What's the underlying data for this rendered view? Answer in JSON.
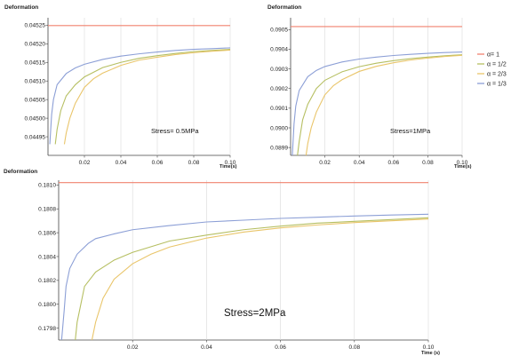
{
  "legend": {
    "entries": [
      {
        "label": "α= 1",
        "color": "#f0826f"
      },
      {
        "label": "α = 1/2",
        "color": "#b6bf62"
      },
      {
        "label": "α = 2/3",
        "color": "#e9c56a"
      },
      {
        "label": "α = 1/3",
        "color": "#8c9fd6"
      }
    ]
  },
  "chart_data": [
    {
      "type": "line",
      "ylabel": "Deformation",
      "xlabel": "Time(s)",
      "annotation": "Stress= 0.5MPa",
      "xlim": [
        0,
        0.1
      ],
      "ylim": [
        0.0449,
        0.04527
      ],
      "grid": true,
      "xticks": [
        0.02,
        0.04,
        0.06,
        0.08,
        0.1
      ],
      "xtick_labels": [
        "0.02",
        "0.04",
        "0.06",
        "0.08",
        "0.10"
      ],
      "yticks": [
        0.04495,
        0.045,
        0.04505,
        0.0451,
        0.04515,
        0.0452,
        0.04525
      ],
      "ytick_labels": [
        "0.04495",
        "0.04500",
        "0.04505",
        "0.04510",
        "0.04515",
        "0.04520",
        "0.04525"
      ],
      "series": [
        {
          "name": "α= 1",
          "color": "#f0826f",
          "x": [
            0,
            0.1
          ],
          "y": [
            0.045249,
            0.045249
          ]
        },
        {
          "name": "α = 1/3",
          "color": "#8c9fd6",
          "x": [
            0.001,
            0.002,
            0.003,
            0.005,
            0.01,
            0.015,
            0.02,
            0.03,
            0.04,
            0.05,
            0.06,
            0.07,
            0.08,
            0.09,
            0.1
          ],
          "y": [
            0.04493,
            0.04501,
            0.04505,
            0.04509,
            0.04512,
            0.045135,
            0.045145,
            0.045158,
            0.045167,
            0.045173,
            0.045178,
            0.045182,
            0.045185,
            0.045187,
            0.045189
          ]
        },
        {
          "name": "α = 1/2",
          "color": "#b6bf62",
          "x": [
            0.004,
            0.005,
            0.007,
            0.01,
            0.015,
            0.02,
            0.03,
            0.04,
            0.05,
            0.06,
            0.07,
            0.08,
            0.09,
            0.1
          ],
          "y": [
            0.04493,
            0.04497,
            0.04502,
            0.04506,
            0.04509,
            0.045111,
            0.045136,
            0.04515,
            0.045161,
            0.045168,
            0.045174,
            0.045179,
            0.045182,
            0.045185
          ]
        },
        {
          "name": "α = 2/3",
          "color": "#e9c56a",
          "x": [
            0.009,
            0.01,
            0.012,
            0.015,
            0.02,
            0.025,
            0.03,
            0.04,
            0.05,
            0.06,
            0.07,
            0.08,
            0.09,
            0.1
          ],
          "y": [
            0.04493,
            0.04496,
            0.045,
            0.04504,
            0.045083,
            0.045106,
            0.045121,
            0.045142,
            0.045156,
            0.045164,
            0.045171,
            0.045176,
            0.04518,
            0.045183
          ]
        }
      ]
    },
    {
      "type": "line",
      "ylabel": "Deformation",
      "xlabel": "Time(s)",
      "annotation": "Stress=1MPa",
      "xlim": [
        0,
        0.1
      ],
      "ylim": [
        0.08986,
        0.09056
      ],
      "grid": true,
      "xticks": [
        0.02,
        0.04,
        0.06,
        0.08,
        0.1
      ],
      "xtick_labels": [
        "0.02",
        "0.04",
        "0.06",
        "0.08",
        "0.10"
      ],
      "yticks": [
        0.0899,
        0.09,
        0.0901,
        0.0902,
        0.0903,
        0.0904,
        0.0905
      ],
      "ytick_labels": [
        "0.0899",
        "0.0900",
        "0.0901",
        "0.0902",
        "0.0903",
        "0.0904",
        "0.0905"
      ],
      "series": [
        {
          "name": "α= 1",
          "color": "#f0826f",
          "x": [
            0,
            0.1
          ],
          "y": [
            0.090515,
            0.090515
          ]
        },
        {
          "name": "α = 1/3",
          "color": "#8c9fd6",
          "x": [
            0.001,
            0.002,
            0.003,
            0.005,
            0.01,
            0.015,
            0.02,
            0.03,
            0.04,
            0.05,
            0.06,
            0.07,
            0.08,
            0.09,
            0.1
          ],
          "y": [
            0.08986,
            0.09002,
            0.09011,
            0.09019,
            0.09026,
            0.090292,
            0.090312,
            0.090335,
            0.09035,
            0.09036,
            0.090368,
            0.090374,
            0.090379,
            0.090383,
            0.090386
          ]
        },
        {
          "name": "α = 1/2",
          "color": "#b6bf62",
          "x": [
            0.004,
            0.005,
            0.007,
            0.01,
            0.015,
            0.02,
            0.03,
            0.04,
            0.05,
            0.06,
            0.07,
            0.08,
            0.09,
            0.1
          ],
          "y": [
            0.08986,
            0.08993,
            0.09004,
            0.09012,
            0.0902,
            0.090242,
            0.090285,
            0.090311,
            0.090329,
            0.090342,
            0.090352,
            0.09036,
            0.090367,
            0.090372
          ]
        },
        {
          "name": "α = 2/3",
          "color": "#e9c56a",
          "x": [
            0.009,
            0.01,
            0.012,
            0.015,
            0.02,
            0.025,
            0.03,
            0.04,
            0.05,
            0.06,
            0.07,
            0.08,
            0.09,
            0.1
          ],
          "y": [
            0.08986,
            0.08992,
            0.09,
            0.09008,
            0.090168,
            0.090215,
            0.090245,
            0.090287,
            0.090313,
            0.090331,
            0.090345,
            0.090355,
            0.090363,
            0.090369
          ]
        }
      ]
    },
    {
      "type": "line",
      "ylabel": "Deformation",
      "xlabel": "Time (s)",
      "annotation": "Stress=2MPa",
      "xlim": [
        0,
        0.1
      ],
      "ylim": [
        0.1797,
        0.18104
      ],
      "grid": true,
      "xticks": [
        0.02,
        0.04,
        0.06,
        0.08,
        0.1
      ],
      "xtick_labels": [
        "0.02",
        "0.04",
        "0.06",
        "0.08",
        "0.10"
      ],
      "yticks": [
        0.1798,
        0.18,
        0.1802,
        0.1804,
        0.1806,
        0.1808,
        0.181
      ],
      "ytick_labels": [
        "0.1798",
        "0.1800",
        "0.1802",
        "0.1804",
        "0.1806",
        "0.1808",
        "0.1810"
      ],
      "series": [
        {
          "name": "α= 1",
          "color": "#f0826f",
          "x": [
            0,
            0.1
          ],
          "y": [
            0.18102,
            0.18102
          ]
        },
        {
          "name": "α = 1/3",
          "color": "#8c9fd6",
          "x": [
            0.0008,
            0.0015,
            0.002,
            0.003,
            0.005,
            0.008,
            0.01,
            0.015,
            0.02,
            0.03,
            0.04,
            0.05,
            0.06,
            0.07,
            0.08,
            0.09,
            0.1
          ],
          "y": [
            0.1797,
            0.17995,
            0.18015,
            0.1803,
            0.18042,
            0.18051,
            0.18055,
            0.18059,
            0.180625,
            0.18066,
            0.18069,
            0.180705,
            0.18072,
            0.18073,
            0.18074,
            0.180748,
            0.180755
          ]
        },
        {
          "name": "α = 1/2",
          "color": "#b6bf62",
          "x": [
            0.0045,
            0.005,
            0.007,
            0.01,
            0.015,
            0.02,
            0.03,
            0.04,
            0.05,
            0.06,
            0.07,
            0.08,
            0.09,
            0.1
          ],
          "y": [
            0.1797,
            0.17985,
            0.18015,
            0.18027,
            0.18037,
            0.180435,
            0.18053,
            0.18058,
            0.180625,
            0.180655,
            0.18068,
            0.180695,
            0.18071,
            0.180725
          ]
        },
        {
          "name": "α = 2/3",
          "color": "#e9c56a",
          "x": [
            0.009,
            0.01,
            0.012,
            0.015,
            0.02,
            0.025,
            0.03,
            0.04,
            0.05,
            0.06,
            0.07,
            0.08,
            0.09,
            0.1
          ],
          "y": [
            0.1797,
            0.17985,
            0.18005,
            0.18021,
            0.18034,
            0.18042,
            0.18048,
            0.180555,
            0.180605,
            0.18064,
            0.180665,
            0.180685,
            0.1807,
            0.180715
          ]
        }
      ]
    }
  ]
}
